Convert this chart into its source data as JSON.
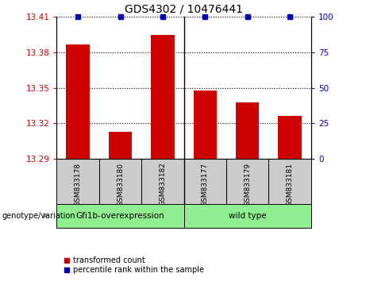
{
  "title": "GDS4302 / 10476441",
  "samples": [
    "GSM833178",
    "GSM833180",
    "GSM833182",
    "GSM833177",
    "GSM833179",
    "GSM833181"
  ],
  "bar_values": [
    13.387,
    13.313,
    13.395,
    13.348,
    13.338,
    13.326
  ],
  "percentile_values": [
    100,
    100,
    100,
    100,
    100,
    100
  ],
  "ylim_left": [
    13.29,
    13.41
  ],
  "ylim_right": [
    0,
    100
  ],
  "yticks_left": [
    13.29,
    13.32,
    13.35,
    13.38,
    13.41
  ],
  "yticks_right": [
    0,
    25,
    50,
    75,
    100
  ],
  "bar_color": "#cc0000",
  "dot_color": "#0000bb",
  "bg_plot": "#ffffff",
  "bg_sample_label": "#cccccc",
  "left_tick_color": "#cc0000",
  "right_tick_color": "#0000bb",
  "group_color": "#90ee90",
  "genotype_label": "genotype/variation",
  "group_labels": [
    "Gfi1b-overexpression",
    "wild type"
  ],
  "legend_labels": [
    "transformed count",
    "percentile rank within the sample"
  ],
  "bar_width": 0.55,
  "n_group1": 3,
  "n_group2": 3
}
